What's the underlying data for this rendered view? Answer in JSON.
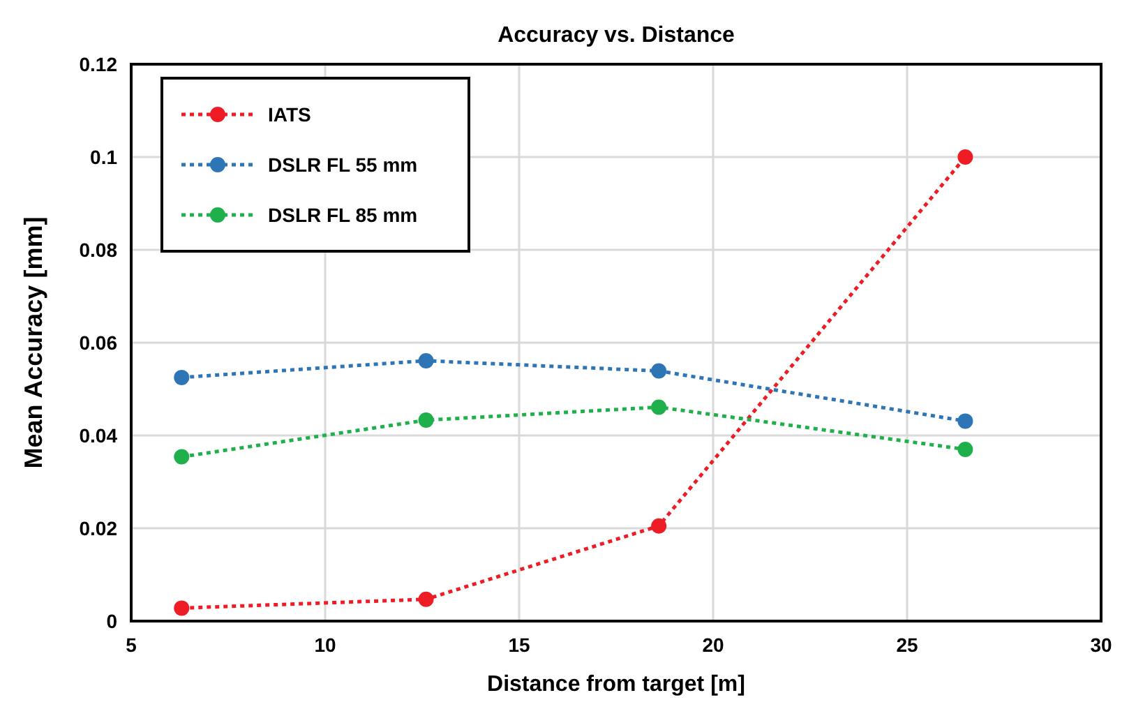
{
  "chart_data": {
    "type": "line",
    "title": "Accuracy vs. Distance",
    "xlabel": "Distance from target [m]",
    "ylabel": "Mean Accuracy [mm]",
    "x": [
      6.3,
      12.6,
      18.6,
      26.5
    ],
    "series": [
      {
        "name": "IATS",
        "color": "#ee1c25",
        "values": [
          0.0028,
          0.0047,
          0.0205,
          0.1
        ]
      },
      {
        "name": "DSLR FL 55 mm",
        "color": "#2e75b6",
        "values": [
          0.0525,
          0.0561,
          0.0539,
          0.0431
        ]
      },
      {
        "name": "DSLR FL 85 mm",
        "color": "#1fb04b",
        "values": [
          0.0354,
          0.0433,
          0.0461,
          0.037
        ]
      }
    ],
    "xlim": [
      5,
      30
    ],
    "xticks": [
      5,
      10,
      15,
      20,
      25,
      30
    ],
    "ylim": [
      0,
      0.12
    ],
    "yticks": [
      0,
      0.02,
      0.04,
      0.06,
      0.08,
      0.1,
      0.12
    ],
    "grid": true,
    "legend": "top left",
    "marker": "circle",
    "line_style": "dotted"
  }
}
